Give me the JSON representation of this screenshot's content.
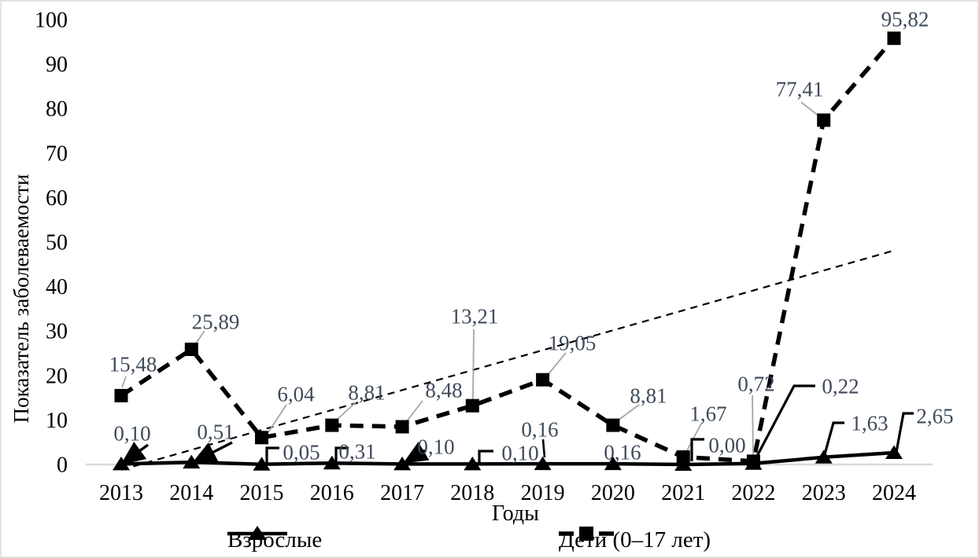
{
  "chart_data": {
    "type": "line",
    "title": "",
    "xlabel": "Годы",
    "ylabel": "Показатель заболеваемости",
    "x": [
      "2013",
      "2014",
      "2015",
      "2016",
      "2017",
      "2018",
      "2019",
      "2020",
      "2021",
      "2022",
      "2023",
      "2024"
    ],
    "ylim": [
      0,
      100
    ],
    "ytick_step": 10,
    "grid": false,
    "legend_position": "bottom",
    "series": [
      {
        "name": "Взрослые",
        "marker": "triangle",
        "line_style": "solid",
        "values": [
          0.1,
          0.51,
          0.05,
          0.31,
          0.1,
          0.1,
          0.16,
          0.16,
          0.0,
          0.22,
          1.63,
          2.65
        ],
        "labels": [
          "0,10",
          "0,51",
          "0,05",
          "0,31",
          "0,10",
          "0,10",
          "0,16",
          "0,16",
          "0,00",
          "0,22",
          "1,63",
          "2,65"
        ]
      },
      {
        "name": "Дети (0–17 лет)",
        "marker": "square",
        "line_style": "dashed",
        "values": [
          15.48,
          25.89,
          6.04,
          8.81,
          8.48,
          13.21,
          19.05,
          8.81,
          1.67,
          0.72,
          77.41,
          95.82
        ],
        "labels": [
          "15,48",
          "25,89",
          "6,04",
          "8,81",
          "8,48",
          "13,21",
          "19,05",
          "8,81",
          "1,67",
          "0,72",
          "77,41",
          "95,82"
        ]
      }
    ],
    "trendline": {
      "for_series": "Дети (0–17 лет)",
      "kind": "linear",
      "style": "thin-dashed",
      "y_at_first_x": -1.2,
      "y_at_last_x": 48.1
    }
  },
  "colors": {
    "series_stroke": "#000000",
    "axis_line": "#d9d9d9",
    "data_label": "#3f4a5a",
    "leader_children": "#a6a6a6",
    "leader_adults": "#000000",
    "tick_label": "#000000",
    "figure_border": "#e3e3e3"
  }
}
